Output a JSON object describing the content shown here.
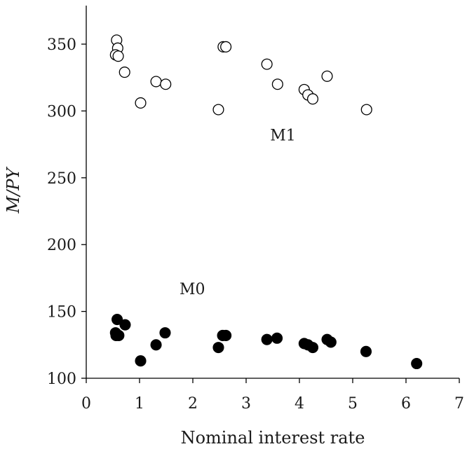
{
  "chart_data": {
    "type": "scatter",
    "title": "",
    "xlabel": "Nominal interest rate",
    "ylabel": "M/PY",
    "xlim": [
      0,
      7
    ],
    "ylim": [
      100,
      380
    ],
    "xticks": [
      0,
      1,
      2,
      3,
      4,
      5,
      6,
      7
    ],
    "yticks": [
      100,
      150,
      200,
      250,
      300,
      350
    ],
    "grid": false,
    "series": [
      {
        "name": "M1",
        "marker": "open-circle",
        "color": "#000000",
        "fill": "#ffffff",
        "points": [
          {
            "x": 0.57,
            "y": 353
          },
          {
            "x": 0.59,
            "y": 347
          },
          {
            "x": 0.55,
            "y": 342
          },
          {
            "x": 0.6,
            "y": 341
          },
          {
            "x": 0.72,
            "y": 329
          },
          {
            "x": 1.02,
            "y": 306
          },
          {
            "x": 1.31,
            "y": 322
          },
          {
            "x": 1.49,
            "y": 320
          },
          {
            "x": 2.48,
            "y": 301
          },
          {
            "x": 2.57,
            "y": 348
          },
          {
            "x": 2.62,
            "y": 348
          },
          {
            "x": 3.39,
            "y": 335
          },
          {
            "x": 3.59,
            "y": 320
          },
          {
            "x": 4.09,
            "y": 316
          },
          {
            "x": 4.16,
            "y": 312
          },
          {
            "x": 4.25,
            "y": 309
          },
          {
            "x": 4.52,
            "y": 326
          },
          {
            "x": 5.26,
            "y": 301
          }
        ]
      },
      {
        "name": "M0",
        "marker": "filled-circle",
        "color": "#000000",
        "fill": "#000000",
        "points": [
          {
            "x": 0.58,
            "y": 144
          },
          {
            "x": 0.55,
            "y": 134
          },
          {
            "x": 0.56,
            "y": 132
          },
          {
            "x": 0.61,
            "y": 132
          },
          {
            "x": 0.73,
            "y": 140
          },
          {
            "x": 1.02,
            "y": 113
          },
          {
            "x": 1.31,
            "y": 125
          },
          {
            "x": 1.48,
            "y": 134
          },
          {
            "x": 2.48,
            "y": 123
          },
          {
            "x": 2.56,
            "y": 132
          },
          {
            "x": 2.62,
            "y": 132
          },
          {
            "x": 3.39,
            "y": 129
          },
          {
            "x": 3.58,
            "y": 130
          },
          {
            "x": 4.09,
            "y": 126
          },
          {
            "x": 4.16,
            "y": 125
          },
          {
            "x": 4.25,
            "y": 123
          },
          {
            "x": 4.52,
            "y": 129
          },
          {
            "x": 4.59,
            "y": 127
          },
          {
            "x": 5.25,
            "y": 120
          },
          {
            "x": 6.2,
            "y": 111
          }
        ]
      }
    ],
    "annotations": [
      {
        "text": "M1",
        "x": 3.45,
        "y": 278
      },
      {
        "text": "M0",
        "x": 1.75,
        "y": 163
      }
    ]
  }
}
